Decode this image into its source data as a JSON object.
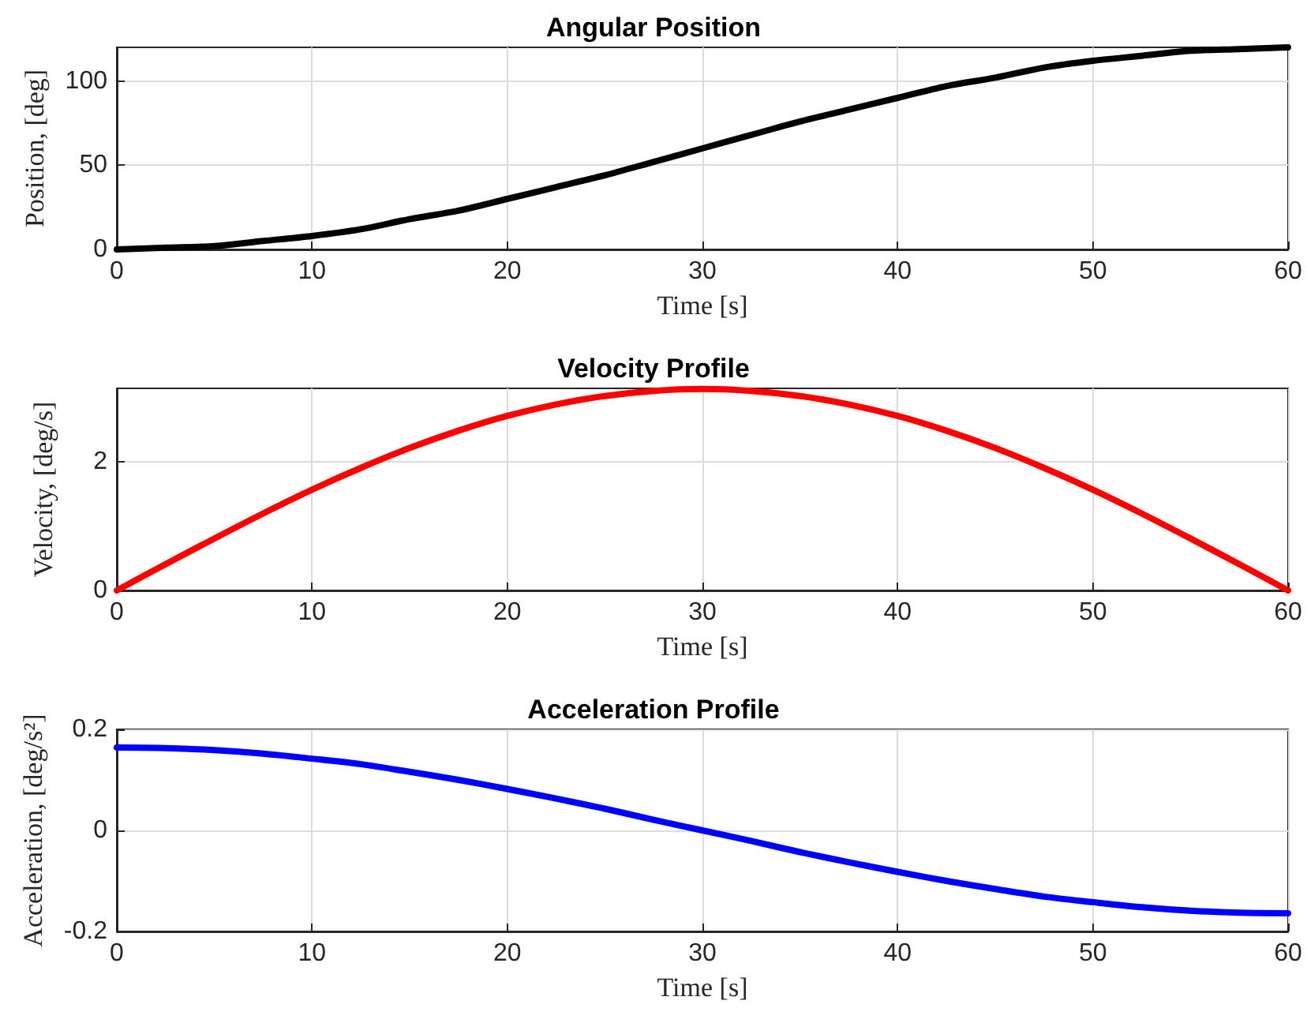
{
  "chart_data": [
    {
      "type": "line",
      "title": "Angular Position",
      "xlabel": "Time [s]",
      "ylabel": "Position, [deg]",
      "xlim": [
        0,
        60
      ],
      "xticks": [
        0,
        10,
        20,
        30,
        40,
        50,
        60
      ],
      "ylim": [
        0,
        120
      ],
      "yticks": [
        0,
        50,
        100
      ],
      "grid": true,
      "marker": "none",
      "line_style": "solid",
      "x": [
        0,
        2.5,
        5,
        7.5,
        10,
        12.5,
        15,
        17.5,
        20,
        22.5,
        25,
        27.5,
        30,
        32.5,
        35,
        37.5,
        40,
        42.5,
        45,
        47.5,
        50,
        52.5,
        55,
        57.5,
        60
      ],
      "series": [
        {
          "color": "#000000",
          "values": [
            0,
            1,
            2,
            5,
            8,
            12,
            18,
            23,
            30,
            37,
            44,
            52,
            60,
            68,
            76,
            83,
            90,
            97,
            102,
            108,
            112,
            115,
            118,
            119,
            120
          ]
        }
      ]
    },
    {
      "type": "line",
      "title": "Velocity Profile",
      "xlabel": "Time [s]",
      "ylabel": "Velocity, [deg/s]",
      "xlim": [
        0,
        60
      ],
      "xticks": [
        0,
        10,
        20,
        30,
        40,
        50,
        60
      ],
      "ylim": [
        0,
        3.15
      ],
      "yticks": [
        0,
        2
      ],
      "grid": true,
      "marker": "none",
      "line_style": "solid",
      "x": [
        0,
        2.5,
        5,
        7.5,
        10,
        12.5,
        15,
        17.5,
        20,
        22.5,
        25,
        27.5,
        30,
        32.5,
        35,
        37.5,
        40,
        42.5,
        45,
        47.5,
        50,
        52.5,
        55,
        57.5,
        60
      ],
      "series": [
        {
          "color": "#ff0000",
          "values": [
            0,
            0.41,
            0.81,
            1.2,
            1.57,
            1.91,
            2.22,
            2.49,
            2.72,
            2.9,
            3.03,
            3.11,
            3.14,
            3.11,
            3.03,
            2.9,
            2.72,
            2.49,
            2.22,
            1.91,
            1.57,
            1.2,
            0.81,
            0.41,
            0
          ]
        }
      ]
    },
    {
      "type": "line",
      "title": "Acceleration Profile",
      "xlabel": "Time [s]",
      "ylabel": "Acceleration, [deg/s²]",
      "xlim": [
        0,
        60
      ],
      "xticks": [
        0,
        10,
        20,
        30,
        40,
        50,
        60
      ],
      "ylim": [
        -0.2,
        0.2
      ],
      "yticks": [
        -0.2,
        0,
        0.2
      ],
      "grid": true,
      "marker": "none",
      "line_style": "solid",
      "x": [
        0,
        2.5,
        5,
        7.5,
        10,
        12.5,
        15,
        17.5,
        20,
        22.5,
        25,
        27.5,
        30,
        32.5,
        35,
        37.5,
        40,
        42.5,
        45,
        47.5,
        50,
        52.5,
        55,
        57.5,
        60
      ],
      "series": [
        {
          "color": "#0000ff",
          "values": [
            0.164,
            0.163,
            0.159,
            0.152,
            0.142,
            0.131,
            0.116,
            0.1,
            0.082,
            0.063,
            0.043,
            0.021,
            0,
            -0.021,
            -0.043,
            -0.063,
            -0.082,
            -0.1,
            -0.116,
            -0.131,
            -0.142,
            -0.152,
            -0.159,
            -0.163,
            -0.164
          ]
        }
      ]
    }
  ]
}
